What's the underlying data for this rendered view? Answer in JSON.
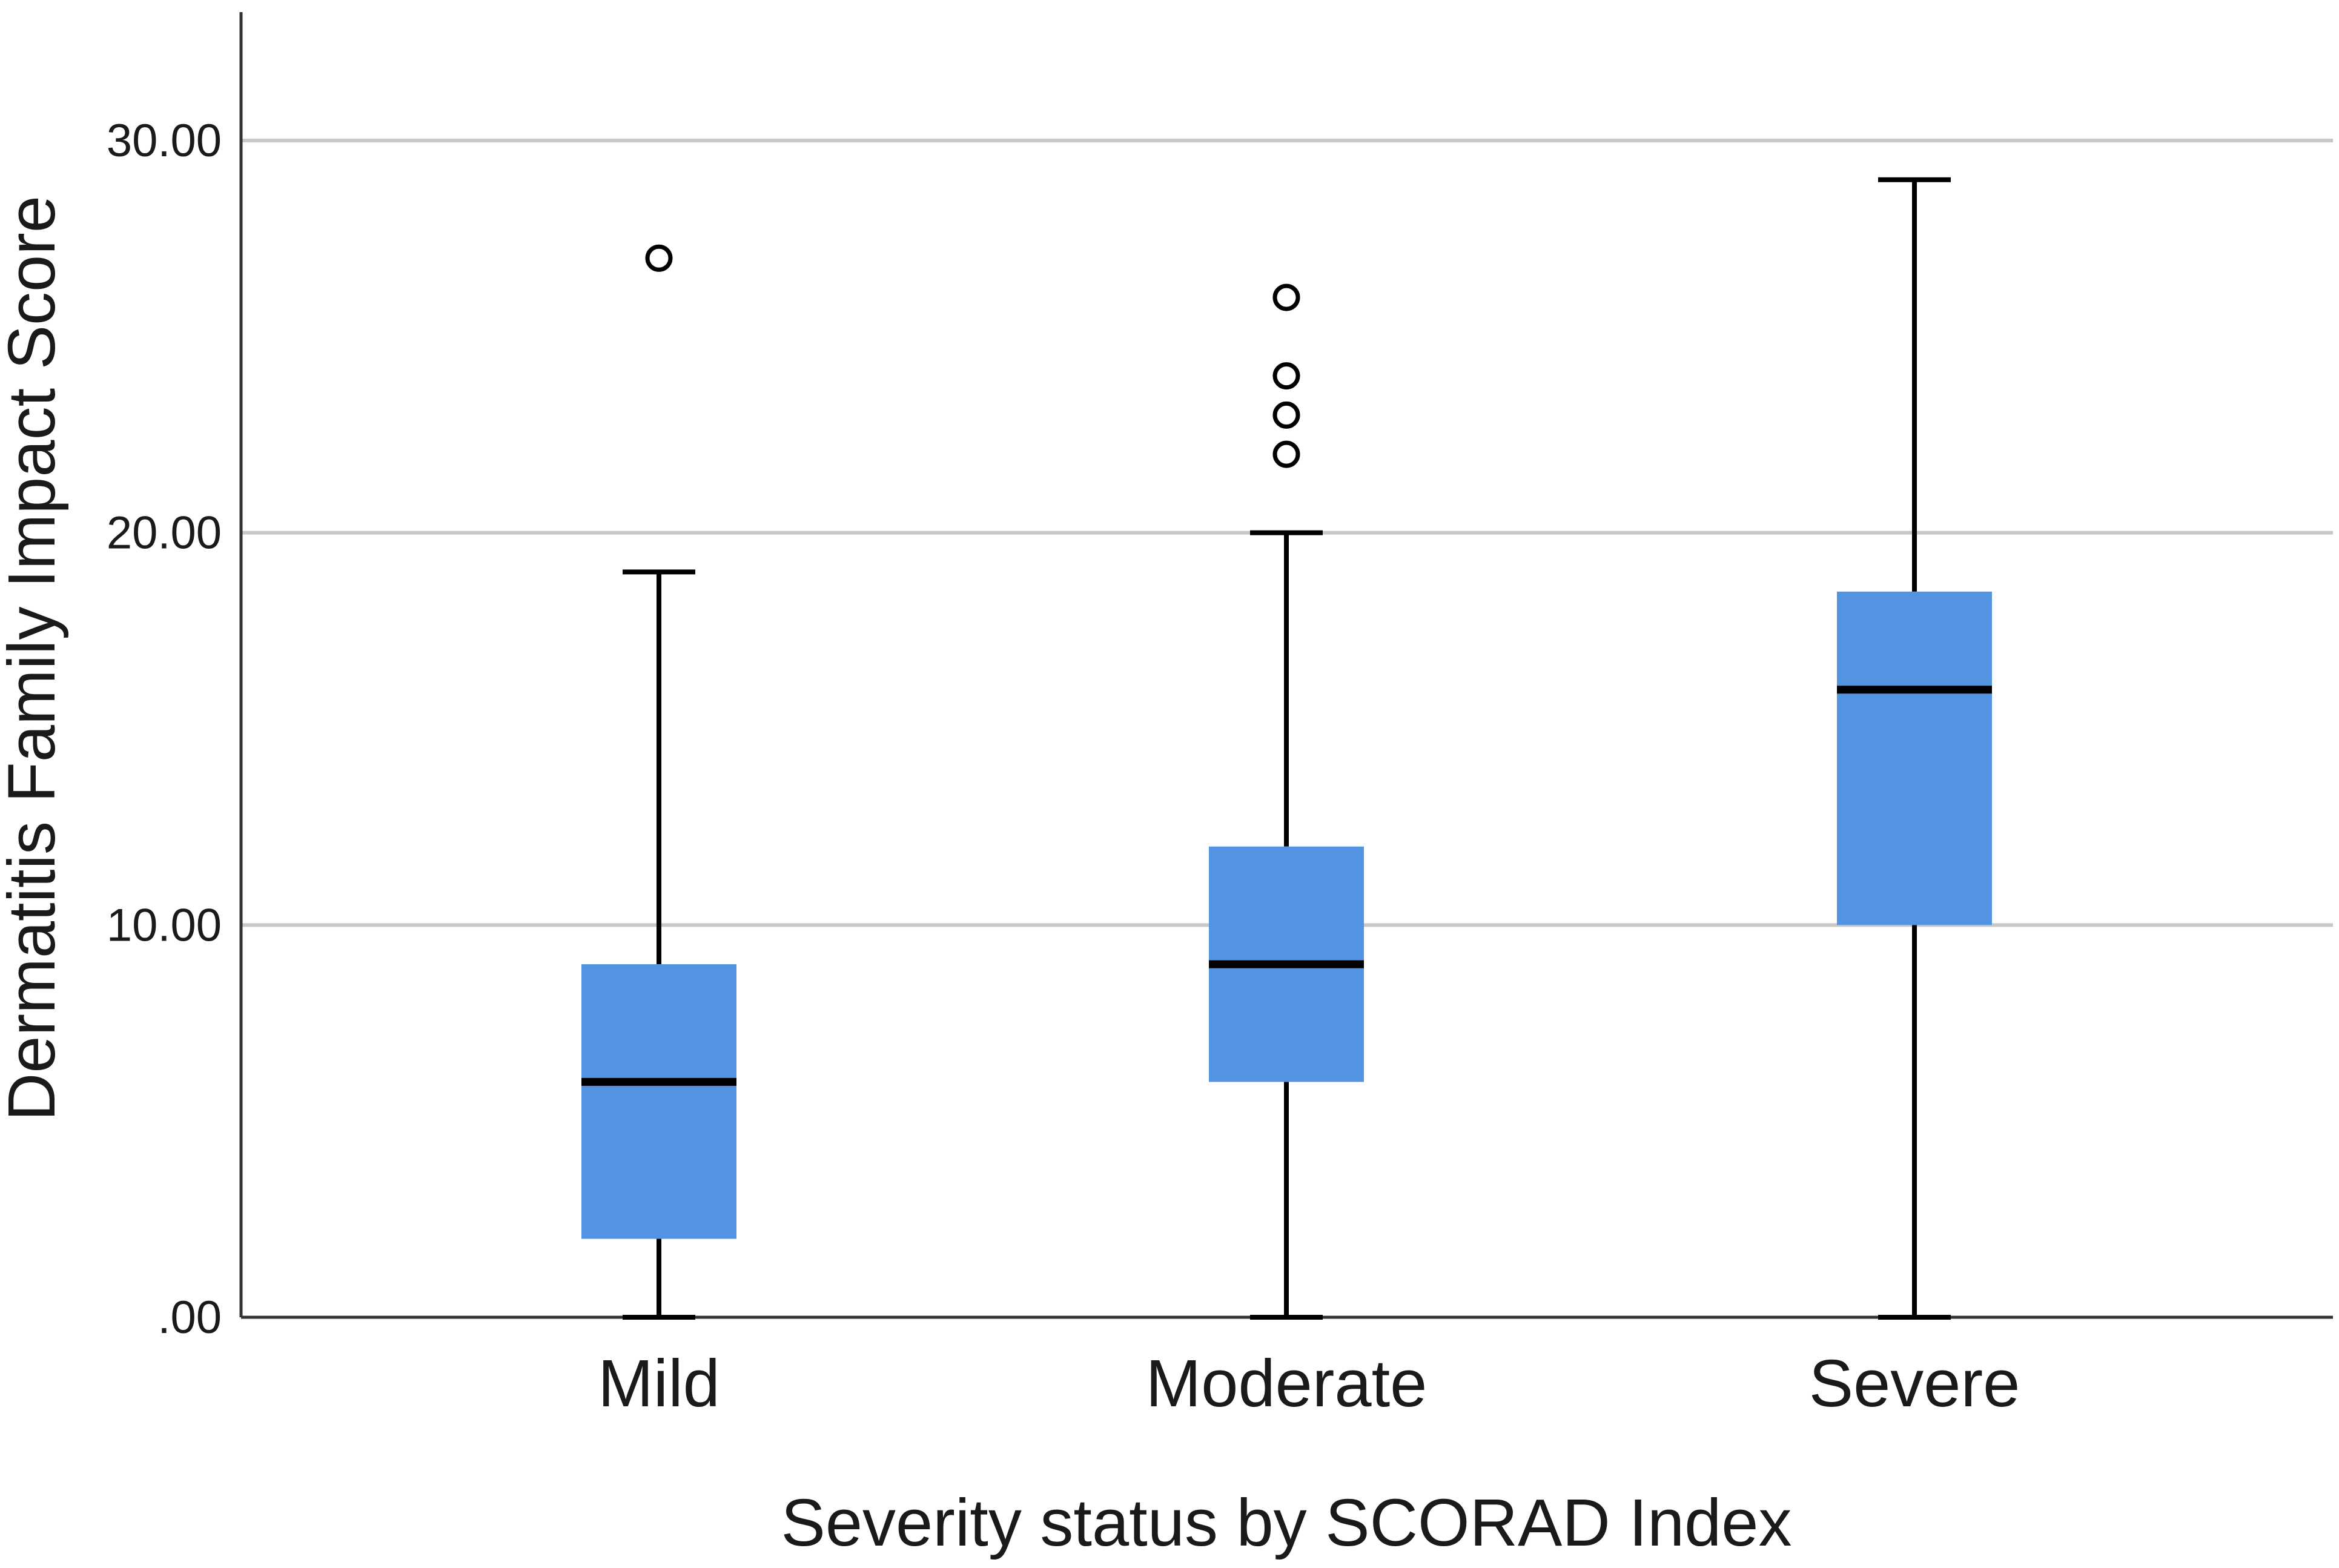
{
  "chart_data": {
    "type": "boxplot",
    "title": "",
    "xlabel": "Severity status by SCORAD Index",
    "ylabel": "Dermatitis Family Impact Score",
    "ylim": [
      0,
      33.3
    ],
    "yticks": [
      0,
      10,
      20,
      30
    ],
    "ytick_labels": [
      ".00",
      "10.00",
      "20.00",
      "30.00"
    ],
    "grid": true,
    "colors": {
      "box_fill": "#5294e2",
      "median": "#000000",
      "whisker": "#000000",
      "grid": "#c8c8c8",
      "axis": "#333333"
    },
    "categories": [
      "Mild",
      "Moderate",
      "Severe"
    ],
    "boxes": [
      {
        "category": "Mild",
        "min": 0,
        "q1": 2,
        "median": 6,
        "q3": 9,
        "max": 19,
        "outliers": [
          27
        ]
      },
      {
        "category": "Moderate",
        "min": 0,
        "q1": 6,
        "median": 9,
        "q3": 12,
        "max": 20,
        "outliers": [
          22,
          23,
          24,
          26
        ]
      },
      {
        "category": "Severe",
        "min": 0,
        "q1": 10,
        "median": 16,
        "q3": 18.5,
        "max": 29,
        "outliers": []
      }
    ]
  }
}
